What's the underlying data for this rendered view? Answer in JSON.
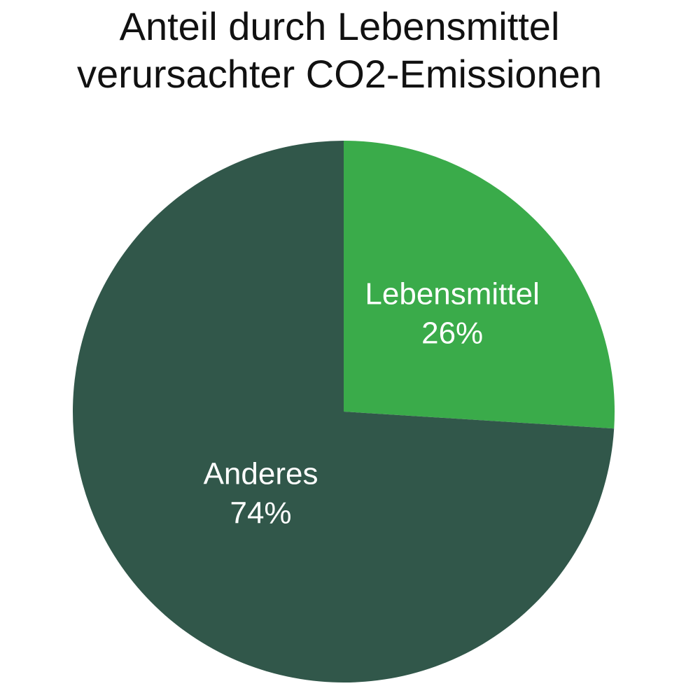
{
  "chart_data": {
    "type": "pie",
    "title_lines": [
      "Anteil durch Lebensmittel",
      "verursachter CO2-Emissionen"
    ],
    "slices": [
      {
        "label": "Lebensmittel",
        "value": 26,
        "value_label": "26%",
        "color": "#3aab4a"
      },
      {
        "label": "Anderes",
        "value": 74,
        "value_label": "74%",
        "color": "#31574a"
      }
    ],
    "start": "12 o'clock",
    "direction": "clockwise",
    "legend": "none"
  }
}
